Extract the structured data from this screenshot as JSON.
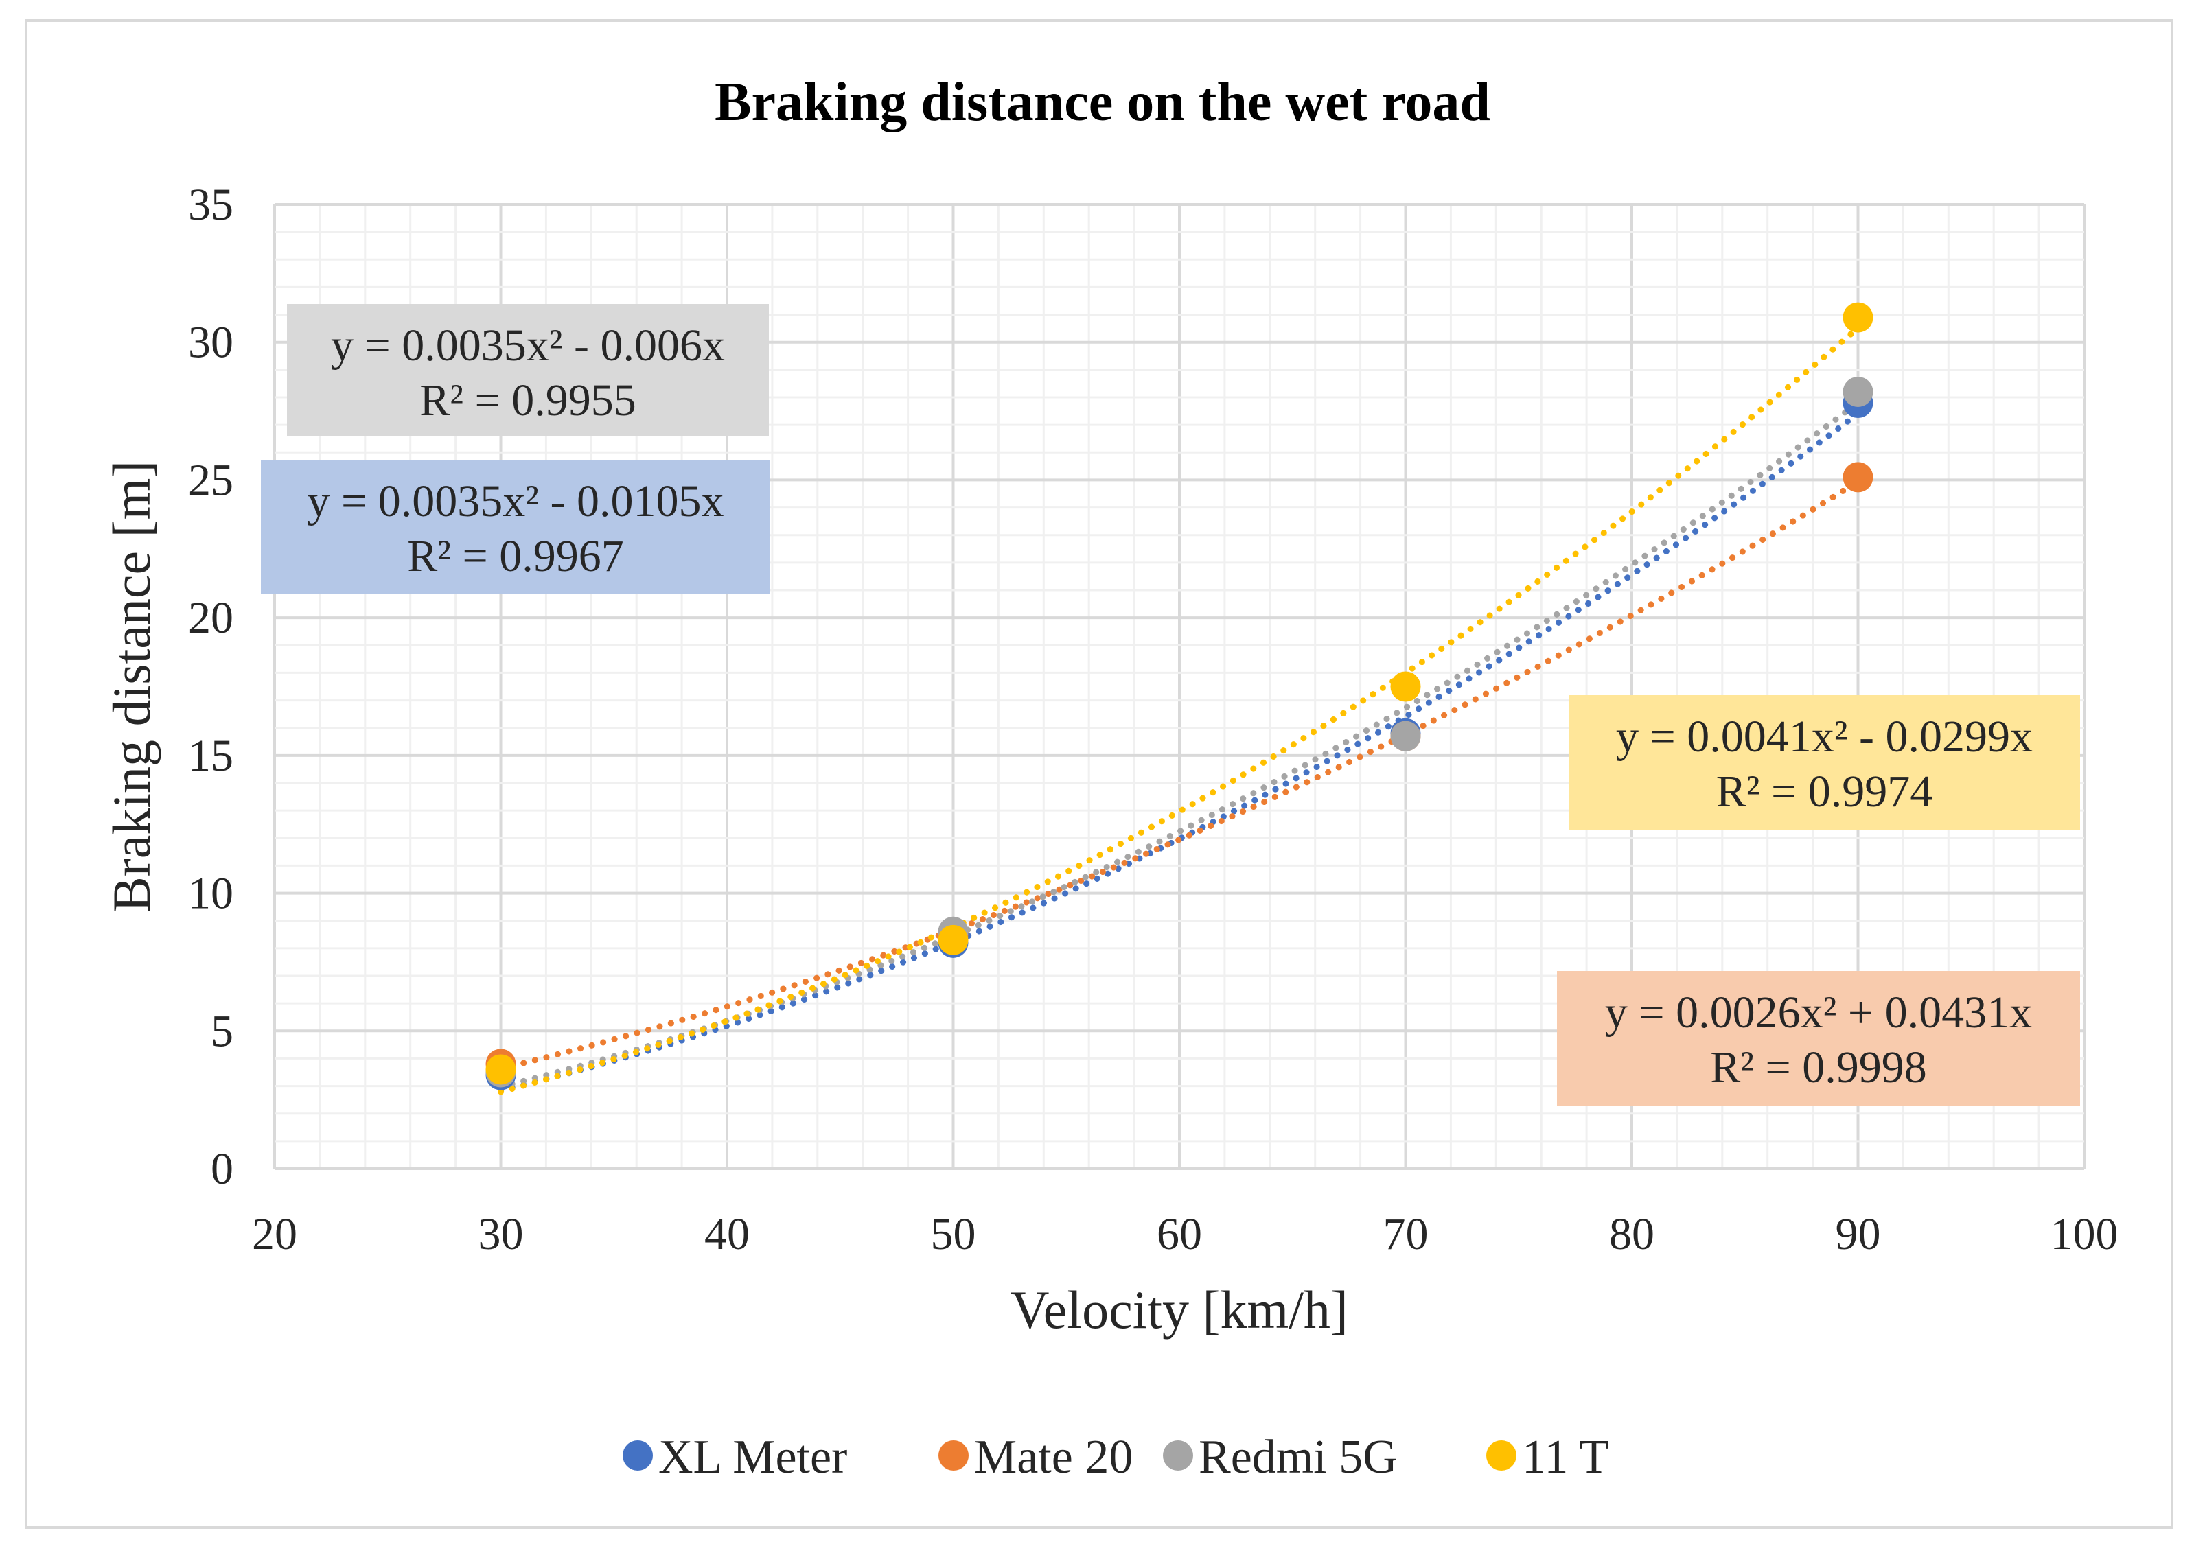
{
  "chart_data": {
    "type": "scatter",
    "title": "Braking distance on the wet road",
    "xlabel": "Velocity [km/h]",
    "ylabel": "Braking distance [m]",
    "xlim": [
      20,
      100
    ],
    "ylim": [
      0,
      35
    ],
    "x_ticks": [
      "20",
      "30",
      "40",
      "50",
      "60",
      "70",
      "80",
      "90",
      "100"
    ],
    "y_ticks": [
      "0",
      "5",
      "10",
      "15",
      "20",
      "25",
      "30",
      "35"
    ],
    "legend_position": "bottom",
    "grid": true,
    "series": [
      {
        "name": "XL Meter",
        "color": "#4472C4",
        "x": [
          30,
          50,
          70,
          90
        ],
        "y": [
          3.4,
          8.2,
          15.8,
          27.8
        ],
        "trendline": {
          "a": 0.0035,
          "b": -0.0105,
          "equation": "y = 0.0035x² - 0.0105x",
          "r2": "R² = 0.9967",
          "box_color": "#B4C7E7"
        }
      },
      {
        "name": "Mate 20",
        "color": "#ED7D31",
        "x": [
          30,
          50,
          70,
          90
        ],
        "y": [
          3.8,
          8.5,
          15.7,
          25.1
        ],
        "trendline": {
          "a": 0.0026,
          "b": 0.0431,
          "equation": "y = 0.0026x² + 0.0431x",
          "r2": "R² = 0.9998",
          "box_color": "#F8CBAD"
        }
      },
      {
        "name": "Redmi 5G",
        "color": "#A5A5A5",
        "x": [
          30,
          50,
          70,
          90
        ],
        "y": [
          3.5,
          8.6,
          15.7,
          28.2
        ],
        "trendline": {
          "a": 0.0035,
          "b": -0.006,
          "equation": "y = 0.0035x² - 0.006x",
          "r2": "R² = 0.9955",
          "box_color": "#D9D9D9"
        }
      },
      {
        "name": "11 T",
        "color": "#FFC000",
        "x": [
          30,
          50,
          70,
          90
        ],
        "y": [
          3.6,
          8.3,
          17.5,
          30.9
        ],
        "trendline": {
          "a": 0.0041,
          "b": -0.0299,
          "equation": "y = 0.0041x² - 0.0299x",
          "r2": "R² = 0.9974",
          "box_color": "#FFE699"
        }
      }
    ]
  }
}
